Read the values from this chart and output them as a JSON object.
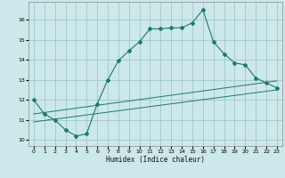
{
  "title": "",
  "xlabel": "Humidex (Indice chaleur)",
  "ylabel": "",
  "bg_color": "#cce8ea",
  "grid_color": "#a0c8c8",
  "line_color": "#1a7a6e",
  "xlim": [
    -0.5,
    23.5
  ],
  "ylim": [
    9.7,
    16.9
  ],
  "xticks": [
    0,
    1,
    2,
    3,
    4,
    5,
    6,
    7,
    8,
    9,
    10,
    11,
    12,
    13,
    14,
    15,
    16,
    17,
    18,
    19,
    20,
    21,
    22,
    23
  ],
  "yticks": [
    10,
    11,
    12,
    13,
    14,
    15,
    16
  ],
  "main_line_x": [
    0,
    1,
    2,
    3,
    4,
    5,
    6,
    7,
    8,
    9,
    10,
    11,
    12,
    13,
    14,
    15,
    16,
    17,
    18,
    19,
    20,
    21,
    22,
    23
  ],
  "main_line_y": [
    12.0,
    11.3,
    11.0,
    10.5,
    10.2,
    10.3,
    11.8,
    13.0,
    13.95,
    14.45,
    14.9,
    15.55,
    15.55,
    15.6,
    15.6,
    15.85,
    16.5,
    14.9,
    14.3,
    13.85,
    13.75,
    13.1,
    12.85,
    12.6
  ],
  "trend1_x": [
    0,
    23
  ],
  "trend1_y": [
    10.9,
    12.5
  ],
  "trend2_x": [
    0,
    23
  ],
  "trend2_y": [
    11.3,
    12.95
  ]
}
